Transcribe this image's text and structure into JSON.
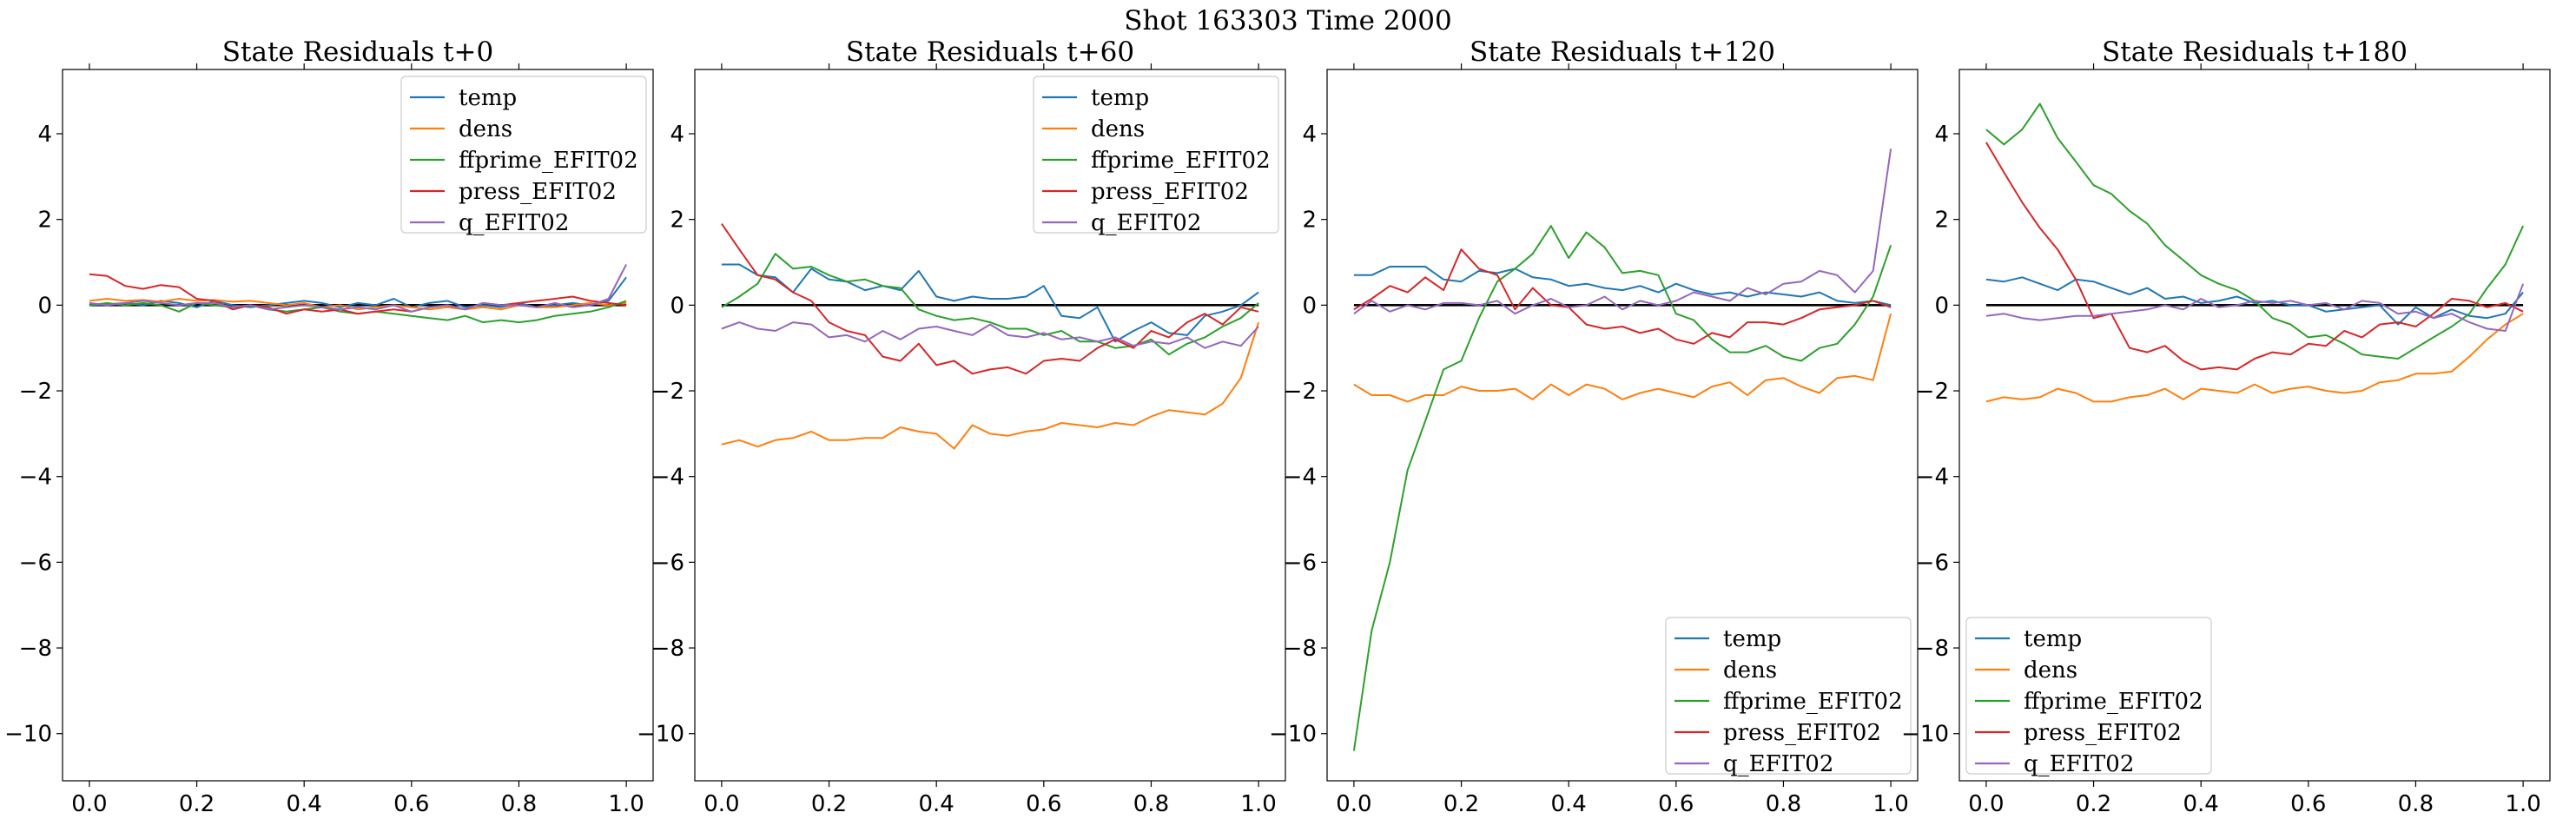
{
  "suptitle": "Shot 163303   Time 2000",
  "colors": {
    "temp": "#1f77b4",
    "dens": "#ff7f0e",
    "ffprime_EFIT02": "#2ca02c",
    "press_EFIT02": "#d62728",
    "q_EFIT02": "#9467bd",
    "zero_line": "#000000"
  },
  "chart_data": [
    {
      "type": "line",
      "title": "State Residuals t+0",
      "xlim": [
        -0.05,
        1.05
      ],
      "ylim": [
        -11.1,
        5.5
      ],
      "xticks": [
        "0.0",
        "0.2",
        "0.4",
        "0.6",
        "0.8",
        "1.0"
      ],
      "yticks": [
        "4",
        "2",
        "0",
        "−2",
        "−4",
        "−6",
        "−8",
        "−10"
      ],
      "legend_position": "upper right",
      "x": [
        0.0,
        0.033,
        0.067,
        0.1,
        0.133,
        0.167,
        0.2,
        0.233,
        0.267,
        0.3,
        0.333,
        0.367,
        0.4,
        0.433,
        0.467,
        0.5,
        0.533,
        0.567,
        0.6,
        0.633,
        0.667,
        0.7,
        0.733,
        0.767,
        0.8,
        0.833,
        0.867,
        0.9,
        0.933,
        0.967,
        1.0
      ],
      "series": [
        {
          "name": "temp",
          "values": [
            0.0,
            0.02,
            0.05,
            0.0,
            0.1,
            0.05,
            -0.05,
            0.1,
            0.0,
            -0.05,
            0.0,
            0.05,
            0.1,
            0.05,
            -0.05,
            0.05,
            0.0,
            0.15,
            -0.05,
            0.05,
            0.1,
            -0.05,
            0.0,
            -0.05,
            0.05,
            -0.05,
            0.0,
            0.05,
            0.0,
            0.1,
            0.65
          ]
        },
        {
          "name": "dens",
          "values": [
            0.1,
            0.15,
            0.1,
            0.12,
            0.08,
            0.15,
            0.1,
            0.12,
            0.08,
            0.1,
            0.05,
            0.0,
            0.05,
            -0.05,
            0.0,
            -0.1,
            -0.05,
            0.0,
            -0.05,
            -0.1,
            -0.05,
            -0.1,
            -0.05,
            -0.1,
            0.0,
            -0.05,
            -0.05,
            0.0,
            0.05,
            0.0,
            0.05
          ]
        },
        {
          "name": "ffprime_EFIT02",
          "values": [
            0.0,
            0.05,
            0.0,
            0.05,
            0.0,
            -0.15,
            0.05,
            0.0,
            -0.05,
            0.0,
            -0.1,
            -0.15,
            -0.1,
            -0.05,
            -0.15,
            -0.2,
            -0.15,
            -0.2,
            -0.25,
            -0.3,
            -0.35,
            -0.25,
            -0.4,
            -0.35,
            -0.4,
            -0.35,
            -0.25,
            -0.2,
            -0.15,
            -0.05,
            0.1
          ]
        },
        {
          "name": "press_EFIT02",
          "values": [
            0.72,
            0.68,
            0.45,
            0.38,
            0.47,
            0.42,
            0.15,
            0.1,
            -0.1,
            0.0,
            -0.05,
            -0.2,
            -0.1,
            -0.15,
            -0.1,
            -0.2,
            -0.15,
            -0.1,
            -0.15,
            -0.05,
            0.0,
            -0.1,
            0.05,
            0.0,
            0.05,
            0.1,
            0.15,
            0.2,
            0.1,
            0.05,
            0.0
          ]
        },
        {
          "name": "q_EFIT02",
          "values": [
            0.05,
            0.0,
            0.05,
            0.1,
            0.05,
            0.0,
            0.05,
            0.05,
            -0.05,
            0.0,
            -0.1,
            -0.05,
            0.0,
            -0.05,
            -0.1,
            -0.05,
            -0.1,
            0.0,
            -0.15,
            -0.05,
            0.0,
            -0.1,
            0.05,
            0.0,
            0.0,
            -0.05,
            0.05,
            -0.05,
            0.0,
            0.15,
            0.95
          ]
        }
      ]
    },
    {
      "type": "line",
      "title": "State Residuals t+60",
      "xlim": [
        -0.05,
        1.05
      ],
      "ylim": [
        -11.1,
        5.5
      ],
      "xticks": [
        "0.0",
        "0.2",
        "0.4",
        "0.6",
        "0.8",
        "1.0"
      ],
      "yticks": [
        "4",
        "2",
        "0",
        "−2",
        "−4",
        "−6",
        "−8",
        "−10"
      ],
      "legend_position": "upper right",
      "x": [
        0.0,
        0.033,
        0.067,
        0.1,
        0.133,
        0.167,
        0.2,
        0.233,
        0.267,
        0.3,
        0.333,
        0.367,
        0.4,
        0.433,
        0.467,
        0.5,
        0.533,
        0.567,
        0.6,
        0.633,
        0.667,
        0.7,
        0.733,
        0.767,
        0.8,
        0.833,
        0.867,
        0.9,
        0.933,
        0.967,
        1.0
      ],
      "series": [
        {
          "name": "temp",
          "values": [
            0.95,
            0.95,
            0.7,
            0.65,
            0.3,
            0.85,
            0.6,
            0.55,
            0.35,
            0.45,
            0.35,
            0.8,
            0.2,
            0.1,
            0.2,
            0.15,
            0.15,
            0.2,
            0.45,
            -0.25,
            -0.3,
            -0.05,
            -0.85,
            -0.6,
            -0.4,
            -0.65,
            -0.7,
            -0.25,
            -0.15,
            0.0,
            0.3
          ]
        },
        {
          "name": "dens",
          "values": [
            -3.25,
            -3.15,
            -3.3,
            -3.15,
            -3.1,
            -2.95,
            -3.15,
            -3.15,
            -3.1,
            -3.1,
            -2.85,
            -2.95,
            -3.0,
            -3.35,
            -2.8,
            -3.0,
            -3.05,
            -2.95,
            -2.9,
            -2.75,
            -2.8,
            -2.85,
            -2.75,
            -2.8,
            -2.6,
            -2.45,
            -2.5,
            -2.55,
            -2.3,
            -1.7,
            -0.4
          ]
        },
        {
          "name": "ffprime_EFIT02",
          "values": [
            -0.05,
            0.2,
            0.5,
            1.2,
            0.85,
            0.9,
            0.7,
            0.55,
            0.6,
            0.45,
            0.4,
            -0.1,
            -0.25,
            -0.35,
            -0.3,
            -0.4,
            -0.55,
            -0.55,
            -0.7,
            -0.6,
            -0.85,
            -0.85,
            -1.0,
            -0.95,
            -0.8,
            -1.15,
            -0.9,
            -0.75,
            -0.5,
            -0.3,
            0.05
          ]
        },
        {
          "name": "press_EFIT02",
          "values": [
            1.9,
            1.3,
            0.7,
            0.6,
            0.3,
            0.1,
            -0.4,
            -0.6,
            -0.7,
            -1.2,
            -1.3,
            -0.9,
            -1.4,
            -1.3,
            -1.6,
            -1.5,
            -1.45,
            -1.6,
            -1.3,
            -1.25,
            -1.3,
            -1.0,
            -0.8,
            -1.0,
            -0.6,
            -0.75,
            -0.4,
            -0.2,
            -0.45,
            -0.05,
            -0.15
          ]
        },
        {
          "name": "q_EFIT02",
          "values": [
            -0.55,
            -0.4,
            -0.55,
            -0.6,
            -0.4,
            -0.45,
            -0.75,
            -0.7,
            -0.85,
            -0.6,
            -0.8,
            -0.55,
            -0.5,
            -0.6,
            -0.7,
            -0.45,
            -0.7,
            -0.75,
            -0.65,
            -0.8,
            -0.75,
            -0.85,
            -0.75,
            -0.95,
            -0.85,
            -0.9,
            -0.75,
            -1.0,
            -0.85,
            -0.95,
            -0.5
          ]
        }
      ]
    },
    {
      "type": "line",
      "title": "State Residuals t+120",
      "xlim": [
        -0.05,
        1.05
      ],
      "ylim": [
        -11.1,
        5.5
      ],
      "xticks": [
        "0.0",
        "0.2",
        "0.4",
        "0.6",
        "0.8",
        "1.0"
      ],
      "yticks": [
        "4",
        "2",
        "0",
        "−2",
        "−4",
        "−6",
        "−8",
        "−10"
      ],
      "legend_position": "lower right",
      "x": [
        0.0,
        0.033,
        0.067,
        0.1,
        0.133,
        0.167,
        0.2,
        0.233,
        0.267,
        0.3,
        0.333,
        0.367,
        0.4,
        0.433,
        0.467,
        0.5,
        0.533,
        0.567,
        0.6,
        0.633,
        0.667,
        0.7,
        0.733,
        0.767,
        0.8,
        0.833,
        0.867,
        0.9,
        0.933,
        0.967,
        1.0
      ],
      "series": [
        {
          "name": "temp",
          "values": [
            0.7,
            0.7,
            0.9,
            0.9,
            0.9,
            0.6,
            0.55,
            0.8,
            0.75,
            0.85,
            0.65,
            0.6,
            0.45,
            0.5,
            0.4,
            0.35,
            0.45,
            0.3,
            0.5,
            0.35,
            0.25,
            0.3,
            0.2,
            0.3,
            0.25,
            0.2,
            0.3,
            0.1,
            0.05,
            0.1,
            0.0
          ]
        },
        {
          "name": "dens",
          "values": [
            -1.85,
            -2.1,
            -2.1,
            -2.25,
            -2.1,
            -2.1,
            -1.9,
            -2.0,
            -2.0,
            -1.95,
            -2.2,
            -1.85,
            -2.1,
            -1.85,
            -1.95,
            -2.2,
            -2.05,
            -1.95,
            -2.05,
            -2.15,
            -1.9,
            -1.8,
            -2.1,
            -1.75,
            -1.7,
            -1.9,
            -2.05,
            -1.7,
            -1.65,
            -1.75,
            -0.2
          ]
        },
        {
          "name": "ffprime_EFIT02",
          "values": [
            -10.4,
            -7.6,
            -6.0,
            -3.85,
            -2.7,
            -1.5,
            -1.3,
            -0.3,
            0.55,
            0.85,
            1.2,
            1.85,
            1.1,
            1.7,
            1.35,
            0.75,
            0.8,
            0.7,
            -0.2,
            -0.35,
            -0.8,
            -1.1,
            -1.1,
            -0.95,
            -1.2,
            -1.3,
            -1.0,
            -0.9,
            -0.45,
            0.2,
            1.4
          ]
        },
        {
          "name": "press_EFIT02",
          "values": [
            -0.1,
            0.15,
            0.45,
            0.3,
            0.65,
            0.35,
            1.3,
            0.85,
            0.7,
            -0.1,
            0.4,
            0.0,
            -0.05,
            -0.45,
            -0.55,
            -0.5,
            -0.65,
            -0.55,
            -0.8,
            -0.9,
            -0.65,
            -0.75,
            -0.4,
            -0.4,
            -0.45,
            -0.3,
            -0.1,
            -0.05,
            0.0,
            0.1,
            -0.05
          ]
        },
        {
          "name": "q_EFIT02",
          "values": [
            -0.2,
            0.1,
            -0.15,
            0.0,
            -0.1,
            0.05,
            0.05,
            0.0,
            0.1,
            -0.2,
            0.0,
            0.15,
            -0.05,
            0.0,
            0.2,
            -0.1,
            0.1,
            0.0,
            0.1,
            0.3,
            0.2,
            0.1,
            0.4,
            0.25,
            0.5,
            0.55,
            0.8,
            0.7,
            0.3,
            0.8,
            3.65
          ]
        }
      ]
    },
    {
      "type": "line",
      "title": "State Residuals t+180",
      "xlim": [
        -0.05,
        1.05
      ],
      "ylim": [
        -11.1,
        5.5
      ],
      "xticks": [
        "0.0",
        "0.2",
        "0.4",
        "0.6",
        "0.8",
        "1.0"
      ],
      "yticks": [
        "4",
        "2",
        "0",
        "−2",
        "−4",
        "−6",
        "−8",
        "−10"
      ],
      "legend_position": "lower left",
      "x": [
        0.0,
        0.033,
        0.067,
        0.1,
        0.133,
        0.167,
        0.2,
        0.233,
        0.267,
        0.3,
        0.333,
        0.367,
        0.4,
        0.433,
        0.467,
        0.5,
        0.533,
        0.567,
        0.6,
        0.633,
        0.667,
        0.7,
        0.733,
        0.767,
        0.8,
        0.833,
        0.867,
        0.9,
        0.933,
        0.967,
        1.0
      ],
      "series": [
        {
          "name": "temp",
          "values": [
            0.6,
            0.55,
            0.65,
            0.5,
            0.35,
            0.6,
            0.55,
            0.4,
            0.25,
            0.4,
            0.15,
            0.2,
            0.05,
            0.1,
            0.2,
            0.05,
            0.1,
            0.0,
            0.0,
            -0.15,
            -0.1,
            -0.05,
            0.0,
            -0.45,
            -0.05,
            -0.3,
            -0.1,
            -0.25,
            -0.3,
            -0.2,
            0.3
          ]
        },
        {
          "name": "dens",
          "values": [
            -2.25,
            -2.15,
            -2.2,
            -2.15,
            -1.95,
            -2.05,
            -2.25,
            -2.25,
            -2.15,
            -2.1,
            -1.95,
            -2.2,
            -1.95,
            -2.0,
            -2.05,
            -1.85,
            -2.05,
            -1.95,
            -1.9,
            -2.0,
            -2.05,
            -2.0,
            -1.8,
            -1.75,
            -1.6,
            -1.6,
            -1.55,
            -1.2,
            -0.8,
            -0.45,
            -0.2
          ]
        },
        {
          "name": "ffprime_EFIT02",
          "values": [
            4.1,
            3.75,
            4.1,
            4.7,
            3.9,
            3.35,
            2.8,
            2.6,
            2.2,
            1.9,
            1.4,
            1.05,
            0.7,
            0.5,
            0.35,
            0.1,
            -0.3,
            -0.45,
            -0.75,
            -0.7,
            -0.9,
            -1.15,
            -1.2,
            -1.25,
            -1.0,
            -0.75,
            -0.5,
            -0.2,
            0.4,
            0.95,
            1.85
          ]
        },
        {
          "name": "press_EFIT02",
          "values": [
            3.8,
            3.1,
            2.4,
            1.8,
            1.3,
            0.6,
            -0.3,
            -0.2,
            -1.0,
            -1.1,
            -0.95,
            -1.3,
            -1.5,
            -1.45,
            -1.5,
            -1.25,
            -1.1,
            -1.15,
            -0.9,
            -0.95,
            -0.6,
            -0.75,
            -0.45,
            -0.4,
            -0.5,
            -0.2,
            0.15,
            0.1,
            -0.05,
            0.05,
            -0.15
          ]
        },
        {
          "name": "q_EFIT02",
          "values": [
            -0.25,
            -0.2,
            -0.3,
            -0.35,
            -0.3,
            -0.25,
            -0.25,
            -0.2,
            -0.15,
            -0.1,
            0.0,
            -0.1,
            0.15,
            -0.05,
            0.0,
            0.1,
            0.05,
            0.1,
            0.0,
            0.05,
            -0.1,
            0.1,
            0.05,
            -0.2,
            -0.15,
            -0.3,
            -0.2,
            -0.4,
            -0.55,
            -0.6,
            0.5
          ]
        }
      ]
    }
  ]
}
